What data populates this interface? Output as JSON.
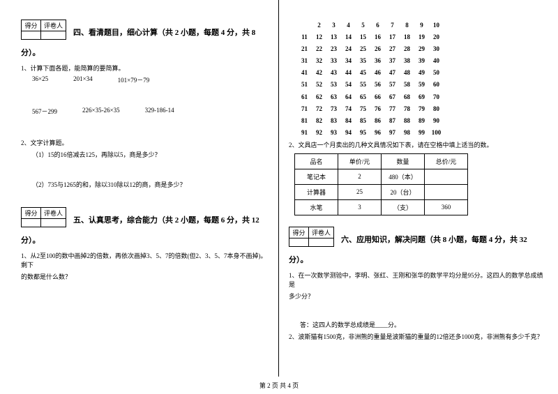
{
  "left": {
    "score_head": [
      "得分",
      "评卷人"
    ],
    "sec4_title": "四、看清题目，细心计算（共 2 小题，每题 4 分，共 8",
    "sec4_tail": "分）。",
    "q1_1": "1、计算下面各题，能简算的要简算。",
    "row1": [
      "36×25",
      "201×34",
      "101×79－79"
    ],
    "row2": [
      "567－299",
      "226×35-26×35",
      "329-186-14"
    ],
    "q1_2": "2、文字计算题。",
    "q1_2a": "（1）15的16倍减去125，再除以5，商是多少？",
    "q1_2b": "（2）735与1265的和，除以310除以12的商，商是多少？",
    "sec5_title": "五、认真思考，综合能力（共 2 小题，每题 6 分，共 12",
    "sec5_tail": "分）。",
    "sec5_q1a": "1、从2至100的数中画掉2的倍数，再依次画掉3、5、7的倍数(但2、3、5、7本身不画掉)。剩下",
    "sec5_q1b": "的数都是什么数？"
  },
  "right": {
    "grid": {
      "rows": [
        [
          "2",
          "3",
          "4",
          "5",
          "6",
          "7",
          "8",
          "9",
          "10"
        ],
        [
          "11",
          "12",
          "13",
          "14",
          "15",
          "16",
          "17",
          "18",
          "19",
          "20"
        ],
        [
          "21",
          "22",
          "23",
          "24",
          "25",
          "26",
          "27",
          "28",
          "29",
          "30"
        ],
        [
          "31",
          "32",
          "33",
          "34",
          "35",
          "36",
          "37",
          "38",
          "39",
          "40"
        ],
        [
          "41",
          "42",
          "43",
          "44",
          "45",
          "46",
          "47",
          "48",
          "49",
          "50"
        ],
        [
          "51",
          "52",
          "53",
          "54",
          "55",
          "56",
          "57",
          "58",
          "59",
          "60"
        ],
        [
          "61",
          "62",
          "63",
          "64",
          "65",
          "66",
          "67",
          "68",
          "69",
          "70"
        ],
        [
          "71",
          "72",
          "73",
          "74",
          "75",
          "76",
          "77",
          "78",
          "79",
          "80"
        ],
        [
          "81",
          "82",
          "83",
          "84",
          "85",
          "86",
          "87",
          "88",
          "89",
          "90"
        ],
        [
          "91",
          "92",
          "93",
          "94",
          "95",
          "96",
          "97",
          "98",
          "99",
          "100"
        ]
      ]
    },
    "q2": "2、文具店一个月卖出的几种文具情况如下表，请在空格中填上适当的数。",
    "table": {
      "header": [
        "品名",
        "单价/元",
        "数量",
        "总价/元"
      ],
      "rows": [
        [
          "笔记本",
          "2",
          "480（本）",
          ""
        ],
        [
          "计算器",
          "25",
          "20（台）",
          ""
        ],
        [
          "水笔",
          "3",
          "（支）",
          "360"
        ]
      ]
    },
    "score_head": [
      "得分",
      "评卷人"
    ],
    "sec6_title": "六、应用知识，解决问题（共 8 小题，每题 4 分，共 32",
    "sec6_tail": "分）。",
    "q6_1a": "1、在一次数学测验中，李明、张红、王刚和张华的数学平均分是95分。这四人的数学总成绩是",
    "q6_1b": "多少分？",
    "q6_1ans": "答：这四人的数学总成绩是____分。",
    "q6_2": "2、波斯猫有1500克，非洲熊的重量是波斯猫的重量的12倍还多1000克，非洲熊有多少千克？"
  },
  "footer": "第 2 页 共 4 页"
}
